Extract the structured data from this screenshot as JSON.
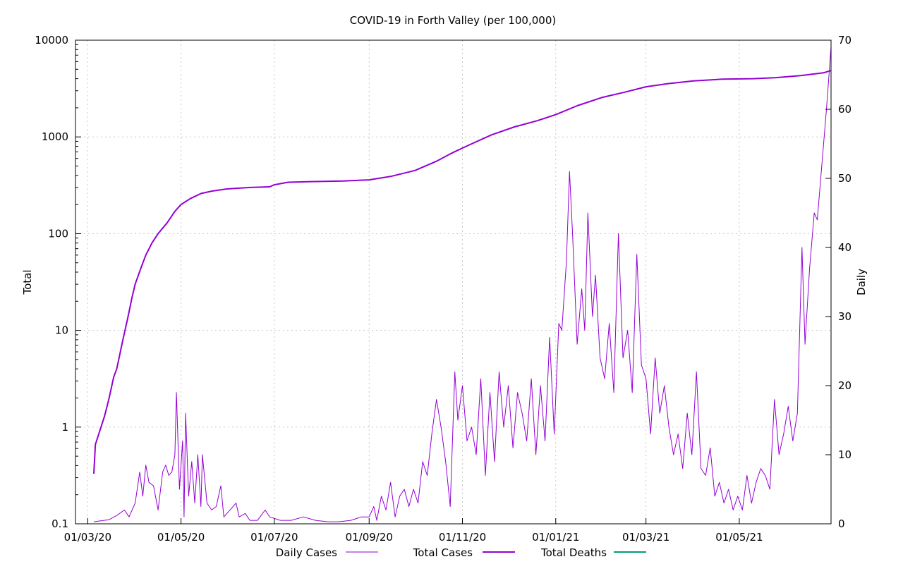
{
  "colors": {
    "daily_cases": "#9400d3",
    "total_cases": "#9400d3",
    "total_deaths": "#009e73",
    "grid": "#c8c8c8",
    "axis": "#000000"
  },
  "chart_data": {
    "type": "line",
    "title": "COVID-19 in Forth Valley (per 100,000)",
    "ylabel_left": "Total",
    "ylabel_right": "Daily",
    "y_left_scale": "log",
    "y_left_range": [
      0.1,
      10000
    ],
    "y_left_ticks": [
      "0.1",
      "1",
      "10",
      "100",
      "1000",
      "10000"
    ],
    "y_right_range": [
      0,
      70
    ],
    "y_right_ticks": [
      "0",
      "10",
      "20",
      "30",
      "40",
      "50",
      "60",
      "70"
    ],
    "x_range": [
      "2020-02-22",
      "2021-06-30"
    ],
    "x_ticks": [
      {
        "date": "2020-03-01",
        "label": "01/03/20"
      },
      {
        "date": "2020-05-01",
        "label": "01/05/20"
      },
      {
        "date": "2020-07-01",
        "label": "01/07/20"
      },
      {
        "date": "2020-09-01",
        "label": "01/09/20"
      },
      {
        "date": "2020-11-01",
        "label": "01/11/20"
      },
      {
        "date": "2021-01-01",
        "label": "01/01/21"
      },
      {
        "date": "2021-03-01",
        "label": "01/03/21"
      },
      {
        "date": "2021-05-01",
        "label": "01/05/21"
      }
    ],
    "grid": true,
    "legend_position": "bottom",
    "series": [
      {
        "name": "Daily Cases",
        "axis": "right",
        "points": [
          [
            "2020-03-05",
            0.3
          ],
          [
            "2020-03-15",
            0.6
          ],
          [
            "2020-03-20",
            1.2
          ],
          [
            "2020-03-25",
            2.0
          ],
          [
            "2020-03-28",
            1.0
          ],
          [
            "2020-04-01",
            3.0
          ],
          [
            "2020-04-04",
            7.5
          ],
          [
            "2020-04-06",
            4.0
          ],
          [
            "2020-04-08",
            8.5
          ],
          [
            "2020-04-10",
            6.0
          ],
          [
            "2020-04-13",
            5.5
          ],
          [
            "2020-04-16",
            2.0
          ],
          [
            "2020-04-19",
            7.5
          ],
          [
            "2020-04-21",
            8.5
          ],
          [
            "2020-04-23",
            7.0
          ],
          [
            "2020-04-25",
            7.5
          ],
          [
            "2020-04-27",
            10.0
          ],
          [
            "2020-04-28",
            19.0
          ],
          [
            "2020-04-30",
            5.0
          ],
          [
            "2020-05-02",
            12.0
          ],
          [
            "2020-05-03",
            1.0
          ],
          [
            "2020-05-04",
            16.0
          ],
          [
            "2020-05-06",
            4.0
          ],
          [
            "2020-05-08",
            9.0
          ],
          [
            "2020-05-10",
            3.0
          ],
          [
            "2020-05-12",
            10.0
          ],
          [
            "2020-05-14",
            2.5
          ],
          [
            "2020-05-15",
            10.0
          ],
          [
            "2020-05-18",
            3.0
          ],
          [
            "2020-05-21",
            2.0
          ],
          [
            "2020-05-24",
            2.5
          ],
          [
            "2020-05-27",
            5.5
          ],
          [
            "2020-05-29",
            1.0
          ],
          [
            "2020-06-02",
            2.0
          ],
          [
            "2020-06-06",
            3.0
          ],
          [
            "2020-06-08",
            1.0
          ],
          [
            "2020-06-12",
            1.5
          ],
          [
            "2020-06-15",
            0.5
          ],
          [
            "2020-06-20",
            0.5
          ],
          [
            "2020-06-25",
            2.0
          ],
          [
            "2020-06-28",
            1.0
          ],
          [
            "2020-07-05",
            0.5
          ],
          [
            "2020-07-12",
            0.5
          ],
          [
            "2020-07-20",
            1.0
          ],
          [
            "2020-07-28",
            0.5
          ],
          [
            "2020-08-05",
            0.3
          ],
          [
            "2020-08-12",
            0.3
          ],
          [
            "2020-08-20",
            0.5
          ],
          [
            "2020-08-27",
            1.0
          ],
          [
            "2020-09-01",
            1.0
          ],
          [
            "2020-09-04",
            2.5
          ],
          [
            "2020-09-06",
            0.5
          ],
          [
            "2020-09-09",
            4.0
          ],
          [
            "2020-09-12",
            2.0
          ],
          [
            "2020-09-15",
            6.0
          ],
          [
            "2020-09-18",
            1.0
          ],
          [
            "2020-09-21",
            4.0
          ],
          [
            "2020-09-24",
            5.0
          ],
          [
            "2020-09-27",
            2.5
          ],
          [
            "2020-09-30",
            5.0
          ],
          [
            "2020-10-03",
            3.0
          ],
          [
            "2020-10-06",
            9.0
          ],
          [
            "2020-10-09",
            7.0
          ],
          [
            "2020-10-12",
            13.0
          ],
          [
            "2020-10-15",
            18.0
          ],
          [
            "2020-10-18",
            14.0
          ],
          [
            "2020-10-21",
            9.0
          ],
          [
            "2020-10-24",
            2.5
          ],
          [
            "2020-10-27",
            22.0
          ],
          [
            "2020-10-29",
            15.0
          ],
          [
            "2020-11-01",
            20.0
          ],
          [
            "2020-11-04",
            12.0
          ],
          [
            "2020-11-07",
            14.0
          ],
          [
            "2020-11-10",
            10.0
          ],
          [
            "2020-11-13",
            21.0
          ],
          [
            "2020-11-16",
            7.0
          ],
          [
            "2020-11-19",
            19.0
          ],
          [
            "2020-11-22",
            9.0
          ],
          [
            "2020-11-25",
            22.0
          ],
          [
            "2020-11-28",
            14.0
          ],
          [
            "2020-12-01",
            20.0
          ],
          [
            "2020-12-04",
            11.0
          ],
          [
            "2020-12-07",
            19.0
          ],
          [
            "2020-12-10",
            16.0
          ],
          [
            "2020-12-13",
            12.0
          ],
          [
            "2020-12-16",
            21.0
          ],
          [
            "2020-12-19",
            10.0
          ],
          [
            "2020-12-22",
            20.0
          ],
          [
            "2020-12-25",
            12.0
          ],
          [
            "2020-12-28",
            27.0
          ],
          [
            "2020-12-31",
            13.0
          ],
          [
            "2021-01-03",
            29.0
          ],
          [
            "2021-01-05",
            28.0
          ],
          [
            "2021-01-08",
            38.0
          ],
          [
            "2021-01-10",
            51.0
          ],
          [
            "2021-01-12",
            42.0
          ],
          [
            "2021-01-15",
            26.0
          ],
          [
            "2021-01-18",
            34.0
          ],
          [
            "2021-01-20",
            28.0
          ],
          [
            "2021-01-22",
            45.0
          ],
          [
            "2021-01-25",
            30.0
          ],
          [
            "2021-01-27",
            36.0
          ],
          [
            "2021-01-30",
            24.0
          ],
          [
            "2021-02-02",
            21.0
          ],
          [
            "2021-02-05",
            29.0
          ],
          [
            "2021-02-08",
            19.0
          ],
          [
            "2021-02-11",
            42.0
          ],
          [
            "2021-02-14",
            24.0
          ],
          [
            "2021-02-17",
            28.0
          ],
          [
            "2021-02-20",
            19.0
          ],
          [
            "2021-02-23",
            39.0
          ],
          [
            "2021-02-26",
            23.0
          ],
          [
            "2021-03-01",
            21.0
          ],
          [
            "2021-03-04",
            13.0
          ],
          [
            "2021-03-07",
            24.0
          ],
          [
            "2021-03-10",
            16.0
          ],
          [
            "2021-03-13",
            20.0
          ],
          [
            "2021-03-16",
            14.0
          ],
          [
            "2021-03-19",
            10.0
          ],
          [
            "2021-03-22",
            13.0
          ],
          [
            "2021-03-25",
            8.0
          ],
          [
            "2021-03-28",
            16.0
          ],
          [
            "2021-03-31",
            10.0
          ],
          [
            "2021-04-03",
            22.0
          ],
          [
            "2021-04-06",
            8.0
          ],
          [
            "2021-04-09",
            7.0
          ],
          [
            "2021-04-12",
            11.0
          ],
          [
            "2021-04-15",
            4.0
          ],
          [
            "2021-04-18",
            6.0
          ],
          [
            "2021-04-21",
            3.0
          ],
          [
            "2021-04-24",
            5.0
          ],
          [
            "2021-04-27",
            2.0
          ],
          [
            "2021-04-30",
            4.0
          ],
          [
            "2021-05-03",
            2.0
          ],
          [
            "2021-05-06",
            7.0
          ],
          [
            "2021-05-09",
            3.0
          ],
          [
            "2021-05-12",
            6.0
          ],
          [
            "2021-05-15",
            8.0
          ],
          [
            "2021-05-18",
            7.0
          ],
          [
            "2021-05-21",
            5.0
          ],
          [
            "2021-05-24",
            18.0
          ],
          [
            "2021-05-27",
            10.0
          ],
          [
            "2021-05-30",
            13.0
          ],
          [
            "2021-06-02",
            17.0
          ],
          [
            "2021-06-05",
            12.0
          ],
          [
            "2021-06-08",
            16.0
          ],
          [
            "2021-06-11",
            40.0
          ],
          [
            "2021-06-13",
            26.0
          ],
          [
            "2021-06-16",
            37.0
          ],
          [
            "2021-06-19",
            45.0
          ],
          [
            "2021-06-21",
            44.0
          ],
          [
            "2021-06-24",
            52.0
          ],
          [
            "2021-06-27",
            60.0
          ],
          [
            "2021-06-30",
            69.0
          ]
        ]
      },
      {
        "name": "Total Cases",
        "axis": "left",
        "points": [
          [
            "2020-03-05",
            0.33
          ],
          [
            "2020-03-06",
            0.66
          ],
          [
            "2020-03-12",
            1.3
          ],
          [
            "2020-03-15",
            2.0
          ],
          [
            "2020-03-18",
            3.3
          ],
          [
            "2020-03-20",
            4.0
          ],
          [
            "2020-03-24",
            8.0
          ],
          [
            "2020-03-27",
            13.0
          ],
          [
            "2020-03-30",
            22.0
          ],
          [
            "2020-04-01",
            30.0
          ],
          [
            "2020-04-05",
            45.0
          ],
          [
            "2020-04-08",
            60.0
          ],
          [
            "2020-04-12",
            80.0
          ],
          [
            "2020-04-16",
            100.0
          ],
          [
            "2020-04-22",
            130.0
          ],
          [
            "2020-04-27",
            170.0
          ],
          [
            "2020-05-01",
            200.0
          ],
          [
            "2020-05-07",
            230.0
          ],
          [
            "2020-05-14",
            260.0
          ],
          [
            "2020-05-21",
            275.0
          ],
          [
            "2020-05-31",
            290.0
          ],
          [
            "2020-06-15",
            300.0
          ],
          [
            "2020-06-28",
            305.0
          ],
          [
            "2020-07-01",
            320.0
          ],
          [
            "2020-07-10",
            340.0
          ],
          [
            "2020-07-25",
            345.0
          ],
          [
            "2020-08-15",
            350.0
          ],
          [
            "2020-09-01",
            360.0
          ],
          [
            "2020-09-15",
            390.0
          ],
          [
            "2020-10-01",
            450.0
          ],
          [
            "2020-10-15",
            560.0
          ],
          [
            "2020-10-25",
            680.0
          ],
          [
            "2020-11-05",
            820.0
          ],
          [
            "2020-11-20",
            1050.0
          ],
          [
            "2020-12-05",
            1270.0
          ],
          [
            "2020-12-20",
            1470.0
          ],
          [
            "2021-01-01",
            1700.0
          ],
          [
            "2021-01-15",
            2100.0
          ],
          [
            "2021-01-31",
            2550.0
          ],
          [
            "2021-02-15",
            2900.0
          ],
          [
            "2021-03-01",
            3300.0
          ],
          [
            "2021-03-15",
            3550.0
          ],
          [
            "2021-04-01",
            3800.0
          ],
          [
            "2021-04-20",
            3950.0
          ],
          [
            "2021-05-10",
            4000.0
          ],
          [
            "2021-05-25",
            4100.0
          ],
          [
            "2021-06-10",
            4300.0
          ],
          [
            "2021-06-25",
            4600.0
          ],
          [
            "2021-06-30",
            4850.0
          ]
        ]
      },
      {
        "name": "Total Deaths",
        "axis": "left",
        "points": []
      }
    ]
  }
}
